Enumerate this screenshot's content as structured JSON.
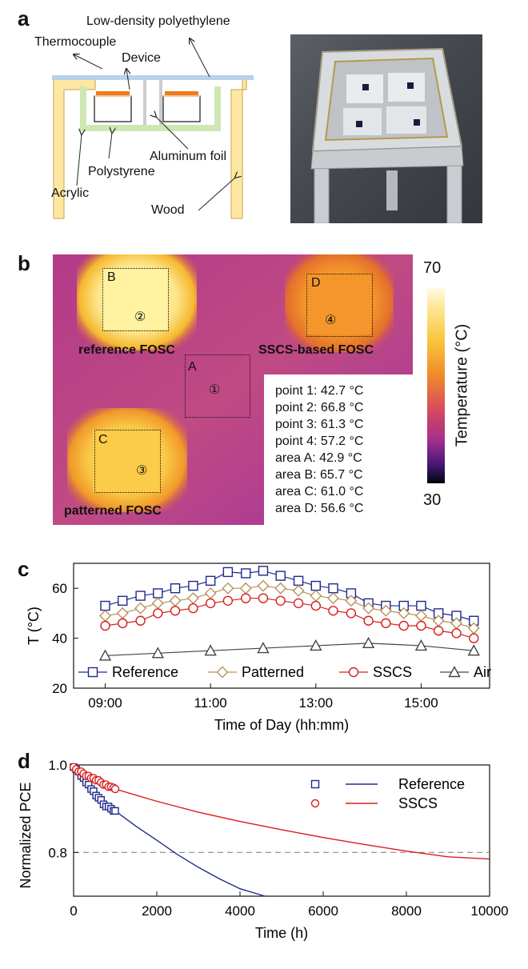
{
  "panel_a": {
    "letter": "a",
    "labels": {
      "ldpe": "Low-density polyethylene",
      "thermocouple": "Thermocouple",
      "device": "Device",
      "aluminum": "Aluminum foil",
      "polystyrene": "Polystyrene",
      "acrylic": "Acrylic",
      "wood": "Wood"
    }
  },
  "panel_b": {
    "letter": "b",
    "regions": [
      {
        "box": "B",
        "point": "②",
        "name": "reference FOSC"
      },
      {
        "box": "D",
        "point": "④",
        "name": "SSCS-based FOSC"
      },
      {
        "box": "A",
        "point": "①",
        "name": ""
      },
      {
        "box": "C",
        "point": "③",
        "name": "patterned FOSC"
      }
    ],
    "readouts": [
      "point 1: 42.7 °C",
      "point 2: 66.8 °C",
      "point 3: 61.3 °C",
      "point 4: 57.2 °C",
      "area A: 42.9 °C",
      "area B: 65.7 °C",
      "area C: 61.0 °C",
      "area D: 56.6 °C"
    ],
    "colorbar": {
      "max": "70",
      "min": "30",
      "label": "Temperature (°C)"
    }
  },
  "panel_c": {
    "letter": "c"
  },
  "panel_d": {
    "letter": "d"
  },
  "chart_data": [
    {
      "type": "line",
      "title": "",
      "xlabel": "Time of Day (hh:mm)",
      "ylabel": "T (°C)",
      "xlim": [
        8.4,
        16.3
      ],
      "ylim": [
        20,
        70
      ],
      "xticks": [
        {
          "v": 9,
          "label": "09:00"
        },
        {
          "v": 11,
          "label": "11:00"
        },
        {
          "v": 13,
          "label": "13:00"
        },
        {
          "v": 15,
          "label": "15:00"
        }
      ],
      "yticks": [
        20,
        40,
        60
      ],
      "legend_position": "bottom",
      "series": [
        {
          "name": "Reference",
          "color": "#1f2a8c",
          "marker": "square",
          "x": [
            9,
            9.33,
            9.67,
            10,
            10.33,
            10.67,
            11,
            11.33,
            11.67,
            12,
            12.33,
            12.67,
            13,
            13.33,
            13.67,
            14,
            14.33,
            14.67,
            15,
            15.33,
            15.67,
            16
          ],
          "y": [
            53,
            55,
            57,
            58,
            60,
            61,
            63,
            66.5,
            66,
            67,
            65,
            63,
            61,
            60,
            58,
            54,
            53,
            53,
            53,
            50,
            49,
            47
          ]
        },
        {
          "name": "Patterned",
          "color": "#b8925a",
          "marker": "diamond",
          "x": [
            9,
            9.33,
            9.67,
            10,
            10.33,
            10.67,
            11,
            11.33,
            11.67,
            12,
            12.33,
            12.67,
            13,
            13.33,
            13.67,
            14,
            14.33,
            14.67,
            15,
            15.33,
            15.67,
            16
          ],
          "y": [
            49,
            50,
            52,
            54,
            55,
            56,
            58,
            60,
            60,
            61,
            60,
            59,
            57,
            56,
            55,
            52,
            51,
            50,
            49,
            47,
            46,
            44
          ]
        },
        {
          "name": "SSCS",
          "color": "#d81e1e",
          "marker": "circle",
          "x": [
            9,
            9.33,
            9.67,
            10,
            10.33,
            10.67,
            11,
            11.33,
            11.67,
            12,
            12.33,
            12.67,
            13,
            13.33,
            13.67,
            14,
            14.33,
            14.67,
            15,
            15.33,
            15.67,
            16
          ],
          "y": [
            45,
            46,
            47,
            50,
            51,
            52,
            54,
            55,
            56,
            56,
            55,
            54,
            53,
            51,
            50,
            47,
            46,
            45,
            45,
            43,
            42,
            40
          ]
        },
        {
          "name": "Air",
          "color": "#444444",
          "marker": "triangle",
          "x": [
            9,
            10,
            11,
            12,
            13,
            14,
            15,
            16
          ],
          "y": [
            33,
            34,
            35,
            36,
            37,
            38,
            37,
            35
          ]
        }
      ]
    },
    {
      "type": "scatter",
      "title": "",
      "xlabel": "Time (h)",
      "ylabel": "Normalized PCE",
      "xlim": [
        0,
        10000
      ],
      "ylim": [
        0.7,
        1.0
      ],
      "xticks": [
        0,
        2000,
        4000,
        6000,
        8000,
        10000
      ],
      "yticks": [
        0.8,
        1.0
      ],
      "reference_line": 0.8,
      "legend_position": "top-right",
      "series": [
        {
          "name": "Reference",
          "color": "#1f2a8c",
          "marker": "square",
          "x": [
            0,
            60,
            120,
            180,
            240,
            300,
            360,
            420,
            480,
            540,
            600,
            660,
            720,
            780,
            840,
            900,
            960,
            1000
          ],
          "y": [
            0.995,
            0.99,
            0.985,
            0.975,
            0.97,
            0.96,
            0.955,
            0.945,
            0.94,
            0.93,
            0.925,
            0.92,
            0.91,
            0.905,
            0.905,
            0.9,
            0.895,
            0.895
          ],
          "fit_x": [
            0,
            500,
            1000,
            1500,
            2000,
            2500,
            3000,
            3500,
            4000,
            4500,
            4600
          ],
          "fit_y": [
            1.0,
            0.935,
            0.895,
            0.86,
            0.828,
            0.795,
            0.766,
            0.74,
            0.717,
            0.703,
            0.7
          ]
        },
        {
          "name": "SSCS",
          "color": "#d81e1e",
          "marker": "circle",
          "x": [
            0,
            60,
            120,
            180,
            240,
            300,
            360,
            420,
            480,
            540,
            600,
            660,
            720,
            780,
            840,
            900,
            960,
            1000
          ],
          "y": [
            0.995,
            0.99,
            0.985,
            0.985,
            0.98,
            0.975,
            0.975,
            0.97,
            0.97,
            0.965,
            0.965,
            0.96,
            0.955,
            0.955,
            0.95,
            0.95,
            0.948,
            0.945
          ],
          "fit_x": [
            0,
            500,
            1000,
            2000,
            3000,
            4000,
            5000,
            6000,
            7000,
            8000,
            9000,
            10000
          ],
          "fit_y": [
            1.0,
            0.96,
            0.945,
            0.917,
            0.892,
            0.871,
            0.852,
            0.834,
            0.818,
            0.803,
            0.79,
            0.785
          ]
        }
      ]
    }
  ]
}
